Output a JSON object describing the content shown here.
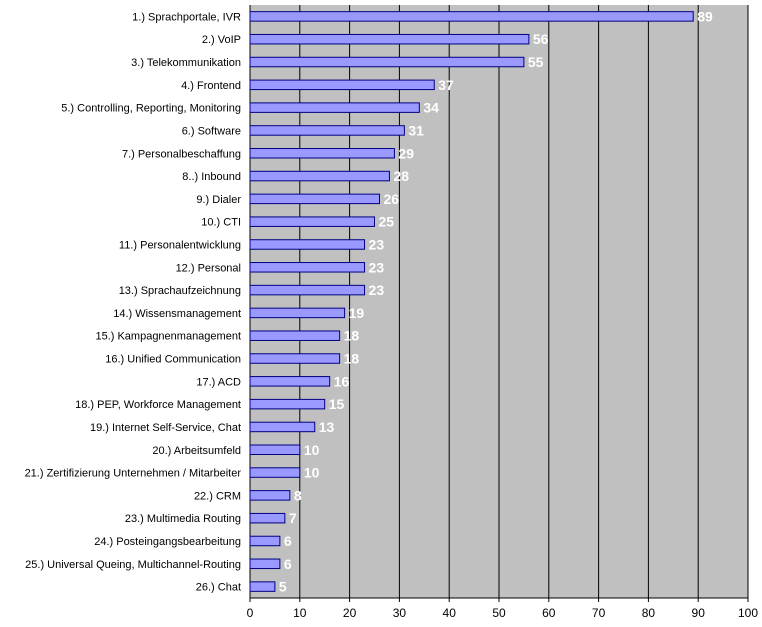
{
  "colors": {
    "plot_background": "#c0c0c0",
    "bar_fill": "#9999ff",
    "bar_stroke": "#000080",
    "gridline": "#000000",
    "value_label": "#ffffff"
  },
  "chart_data": {
    "type": "bar",
    "orientation": "horizontal",
    "title": "",
    "xlabel": "",
    "ylabel": "",
    "xlim": [
      0,
      100
    ],
    "x_ticks": [
      0,
      10,
      20,
      30,
      40,
      50,
      60,
      70,
      80,
      90,
      100
    ],
    "grid": true,
    "legend": "none",
    "categories": [
      "1.) Sprachportale, IVR",
      "2.) VoIP",
      "3.) Telekommunikation",
      "4.) Frontend",
      "5.) Controlling, Reporting, Monitoring",
      "6.) Software",
      "7.) Personalbeschaffung",
      "8..) Inbound",
      "9.) Dialer",
      "10.) CTI",
      "11.) Personalentwicklung",
      "12.) Personal",
      "13.) Sprachaufzeichnung",
      "14.) Wissensmanagement",
      "15.) Kampagnenmanagement",
      "16.) Unified Communication",
      "17.) ACD",
      "18.) PEP, Workforce Management",
      "19.) Internet Self-Service, Chat",
      "20.) Arbeitsumfeld",
      "21.) Zertifizierung Unternehmen / Mitarbeiter",
      "22.) CRM",
      "23.) Multimedia Routing",
      "24.) Posteingangsbearbeitung",
      "25.) Universal Queing, Multichannel-Routing",
      "26.) Chat"
    ],
    "values": [
      89,
      56,
      55,
      37,
      34,
      31,
      29,
      28,
      26,
      25,
      23,
      23,
      23,
      19,
      18,
      18,
      16,
      15,
      13,
      10,
      10,
      8,
      7,
      6,
      6,
      5
    ]
  }
}
